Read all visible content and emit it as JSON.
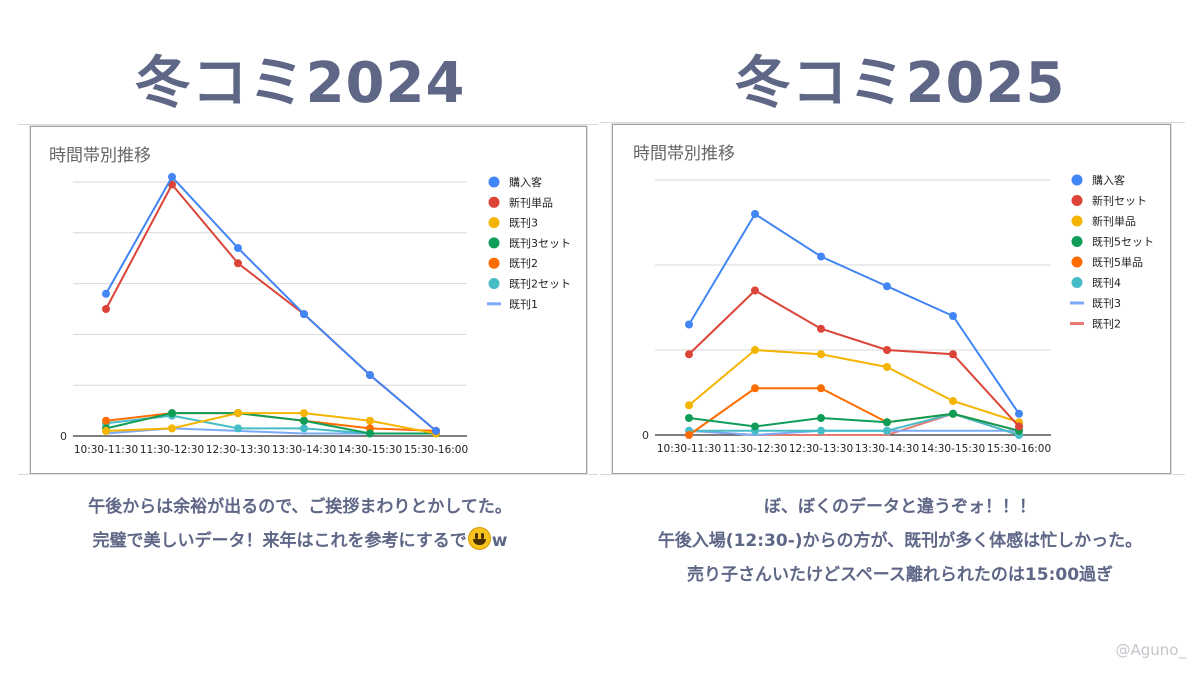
{
  "left": {
    "heading": "冬コミ2024",
    "caption_lines": [
      "午後からは余裕が出るので、ご挨拶まわりとかしてた。",
      "完璧で美しいデータ！来年はこれを参考にするで"
    ],
    "caption_suffix": "w",
    "emoji": "grinning-face"
  },
  "right": {
    "heading": "冬コミ2025",
    "caption_lines": [
      "ぼ、ぼくのデータと違うぞォ！！！",
      "午後入場(12:30-)からの方が、既刊が多く体感は忙しかった。",
      "売り子さんいたけどスペース離れられたのは15:00過ぎ"
    ]
  },
  "watermark": "@Aguno_",
  "chart_data": [
    {
      "type": "line",
      "title": "時間帯別推移",
      "xlabel": "",
      "ylabel": "",
      "ylim": [
        0,
        50
      ],
      "y_tick_labels": [
        "0"
      ],
      "grid": true,
      "legend_position": "right",
      "categories": [
        "10:30-11:30",
        "11:30-12:30",
        "12:30-13:30",
        "13:30-14:30",
        "14:30-15:30",
        "15:30-16:00"
      ],
      "series": [
        {
          "name": "購入客",
          "color": "#4285f4",
          "values": [
            28,
            51,
            37,
            24,
            12,
            1
          ]
        },
        {
          "name": "新刊単品",
          "color": "#db4437",
          "values": [
            25,
            49.5,
            34,
            24,
            12,
            1
          ]
        },
        {
          "name": "既刊3",
          "color": "#f4b400",
          "values": [
            1,
            1.5,
            4.5,
            4.5,
            3,
            0.5
          ]
        },
        {
          "name": "既刊3セット",
          "color": "#0f9d58",
          "values": [
            1.5,
            4.5,
            4.5,
            3,
            0.5,
            0.5
          ]
        },
        {
          "name": "既刊2",
          "color": "#ff6d01",
          "values": [
            3,
            4.5,
            4.5,
            3,
            1.5,
            1
          ]
        },
        {
          "name": "既刊2セット",
          "color": "#46bdc6",
          "values": [
            2.5,
            4,
            1.5,
            1.5,
            0.5,
            0.5
          ]
        },
        {
          "name": "既刊1",
          "color": "#7baaf7",
          "values": [
            0.5,
            1.5,
            1,
            0.5,
            0.5,
            0.5
          ]
        }
      ]
    },
    {
      "type": "line",
      "title": "時間帯別推移",
      "xlabel": "",
      "ylabel": "",
      "ylim": [
        0,
        30
      ],
      "y_tick_labels": [
        "0"
      ],
      "grid": true,
      "legend_position": "right",
      "categories": [
        "10:30-11:30",
        "11:30-12:30",
        "12:30-13:30",
        "13:30-14:30",
        "14:30-15:30",
        "15:30-16:00"
      ],
      "series": [
        {
          "name": "購入客",
          "color": "#4285f4",
          "values": [
            13,
            26,
            21,
            17.5,
            14,
            2.5
          ]
        },
        {
          "name": "新刊セット",
          "color": "#db4437",
          "values": [
            9.5,
            17,
            12.5,
            10,
            9.5,
            1
          ]
        },
        {
          "name": "新刊単品",
          "color": "#f4b400",
          "values": [
            3.5,
            10,
            9.5,
            8,
            4,
            1.5
          ]
        },
        {
          "name": "既刊5セット",
          "color": "#0f9d58",
          "values": [
            2,
            1,
            2,
            1.5,
            2.5,
            0.5
          ]
        },
        {
          "name": "既刊5単品",
          "color": "#ff6d01",
          "values": [
            0,
            5.5,
            5.5,
            1.5,
            2.5,
            0.5
          ]
        },
        {
          "name": "既刊4",
          "color": "#46bdc6",
          "values": [
            0.5,
            0.5,
            0.5,
            0.5,
            2.5,
            0
          ]
        },
        {
          "name": "既刊3",
          "color": "#7baaf7",
          "values": [
            0.5,
            0,
            0.5,
            0.5,
            0.5,
            0.5
          ]
        },
        {
          "name": "既刊2",
          "color": "#e67c73",
          "values": [
            0.5,
            0,
            0,
            0,
            2.5,
            0
          ]
        }
      ]
    }
  ]
}
